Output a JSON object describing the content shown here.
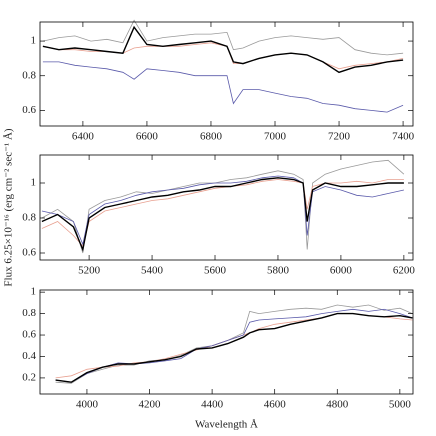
{
  "chart_data": [
    {
      "type": "line",
      "x": [
        6275,
        6325,
        6375,
        6425,
        6475,
        6525,
        6560,
        6600,
        6650,
        6700,
        6750,
        6800,
        6850,
        6870,
        6900,
        6950,
        7000,
        7050,
        7100,
        7150,
        7200,
        7250,
        7300,
        7350,
        7400
      ],
      "series": [
        {
          "color": "#9a9a9a",
          "values": [
            1.0,
            1.02,
            1.03,
            1.0,
            1.01,
            0.99,
            1.12,
            1.0,
            1.02,
            1.03,
            1.04,
            1.04,
            1.05,
            0.95,
            0.96,
            1.0,
            1.02,
            1.03,
            1.02,
            1.01,
            1.02,
            0.95,
            0.93,
            0.92,
            0.93
          ]
        },
        {
          "color": "#e8a090",
          "values": [
            0.97,
            0.95,
            0.95,
            0.94,
            0.94,
            0.93,
            0.96,
            0.97,
            0.97,
            0.97,
            0.98,
            0.99,
            0.97,
            0.87,
            0.87,
            0.9,
            0.92,
            0.93,
            0.92,
            0.88,
            0.84,
            0.86,
            0.87,
            0.88,
            0.9
          ]
        },
        {
          "color": "#5a5aaa",
          "values": [
            0.88,
            0.88,
            0.86,
            0.85,
            0.84,
            0.82,
            0.78,
            0.84,
            0.83,
            0.82,
            0.8,
            0.8,
            0.8,
            0.64,
            0.72,
            0.72,
            0.7,
            0.68,
            0.67,
            0.64,
            0.63,
            0.61,
            0.6,
            0.59,
            0.63
          ]
        },
        {
          "color": "#000000",
          "values": [
            0.97,
            0.95,
            0.96,
            0.95,
            0.94,
            0.93,
            1.08,
            0.98,
            0.97,
            0.98,
            0.99,
            1.0,
            0.97,
            0.88,
            0.87,
            0.9,
            0.92,
            0.93,
            0.92,
            0.88,
            0.82,
            0.85,
            0.86,
            0.88,
            0.89
          ]
        }
      ],
      "xlim": [
        6266,
        7431
      ],
      "xticks": [
        6400,
        6600,
        6800,
        7000,
        7200,
        7400
      ],
      "ylim": [
        0.51,
        1.11
      ],
      "yticks": [
        0.6,
        0.8,
        1
      ]
    },
    {
      "type": "line",
      "ylabel": "Flux 6.25×10⁻¹⁶ (erg cm⁻² sec⁻¹ Å)",
      "x": [
        5050,
        5100,
        5150,
        5180,
        5200,
        5250,
        5300,
        5350,
        5400,
        5450,
        5500,
        5550,
        5600,
        5650,
        5700,
        5750,
        5800,
        5850,
        5880,
        5893,
        5910,
        5950,
        6000,
        6050,
        6100,
        6150,
        6200
      ],
      "series": [
        {
          "color": "#9a9a9a",
          "values": [
            0.8,
            0.85,
            0.78,
            0.6,
            0.85,
            0.9,
            0.92,
            0.95,
            0.94,
            0.96,
            0.98,
            1.0,
            1.0,
            1.02,
            1.03,
            1.05,
            1.07,
            1.05,
            1.02,
            0.62,
            1.0,
            1.05,
            1.08,
            1.1,
            1.12,
            1.13,
            1.05
          ]
        },
        {
          "color": "#e8a090",
          "values": [
            0.74,
            0.78,
            0.7,
            0.64,
            0.78,
            0.84,
            0.86,
            0.88,
            0.9,
            0.91,
            0.93,
            0.95,
            0.97,
            0.98,
            0.99,
            1.01,
            1.02,
            1.01,
            1.0,
            0.85,
            0.98,
            1.0,
            1.0,
            1.01,
            1.0,
            1.02,
            1.02
          ]
        },
        {
          "color": "#5a5aaa",
          "values": [
            0.84,
            0.82,
            0.78,
            0.65,
            0.82,
            0.88,
            0.9,
            0.93,
            0.95,
            0.96,
            0.97,
            0.99,
            1.0,
            1.0,
            1.01,
            1.03,
            1.04,
            1.03,
            1.0,
            0.7,
            0.95,
            0.98,
            0.96,
            0.93,
            0.92,
            0.94,
            0.96
          ]
        },
        {
          "color": "#000000",
          "values": [
            0.78,
            0.82,
            0.75,
            0.62,
            0.8,
            0.86,
            0.88,
            0.9,
            0.92,
            0.93,
            0.95,
            0.96,
            0.98,
            0.98,
            1.0,
            1.02,
            1.03,
            1.02,
            1.0,
            0.78,
            0.96,
            1.0,
            0.98,
            0.98,
            0.99,
            1.0,
            1.0
          ]
        }
      ],
      "xlim": [
        5044,
        6229
      ],
      "xticks": [
        5200,
        5400,
        5600,
        5800,
        6000,
        6200
      ],
      "ylim": [
        0.56,
        1.16
      ],
      "yticks": [
        0.6,
        0.8,
        1
      ]
    },
    {
      "type": "line",
      "xlabel": "Wavelength Å",
      "x": [
        3900,
        3950,
        4000,
        4050,
        4100,
        4150,
        4200,
        4250,
        4300,
        4350,
        4400,
        4450,
        4500,
        4520,
        4550,
        4600,
        4650,
        4700,
        4750,
        4800,
        4850,
        4900,
        4950,
        5000,
        5040
      ],
      "series": [
        {
          "color": "#9a9a9a",
          "values": [
            0.16,
            0.15,
            0.24,
            0.28,
            0.32,
            0.32,
            0.36,
            0.37,
            0.41,
            0.48,
            0.5,
            0.55,
            0.62,
            0.82,
            0.8,
            0.82,
            0.84,
            0.85,
            0.84,
            0.88,
            0.86,
            0.88,
            0.83,
            0.85,
            0.8
          ]
        },
        {
          "color": "#e8a090",
          "values": [
            0.2,
            0.22,
            0.28,
            0.3,
            0.31,
            0.34,
            0.35,
            0.38,
            0.42,
            0.46,
            0.5,
            0.55,
            0.6,
            0.62,
            0.66,
            0.7,
            0.72,
            0.74,
            0.76,
            0.8,
            0.8,
            0.78,
            0.77,
            0.75,
            0.74
          ]
        },
        {
          "color": "#5a5aaa",
          "values": [
            0.18,
            0.16,
            0.24,
            0.3,
            0.34,
            0.33,
            0.34,
            0.36,
            0.38,
            0.47,
            0.5,
            0.55,
            0.6,
            0.72,
            0.74,
            0.75,
            0.76,
            0.77,
            0.8,
            0.82,
            0.84,
            0.82,
            0.84,
            0.8,
            0.76
          ]
        },
        {
          "color": "#000000",
          "values": [
            0.18,
            0.16,
            0.25,
            0.3,
            0.33,
            0.33,
            0.35,
            0.37,
            0.4,
            0.47,
            0.48,
            0.52,
            0.58,
            0.62,
            0.65,
            0.66,
            0.7,
            0.73,
            0.76,
            0.8,
            0.8,
            0.78,
            0.77,
            0.78,
            0.76
          ]
        }
      ],
      "xlim": [
        3850,
        5042
      ],
      "xticks": [
        4000,
        4200,
        4400,
        4600,
        4800,
        5000
      ],
      "ylim": [
        0.05,
        1.02
      ],
      "yticks": [
        0.2,
        0.4,
        0.6,
        0.8,
        1
      ]
    }
  ]
}
